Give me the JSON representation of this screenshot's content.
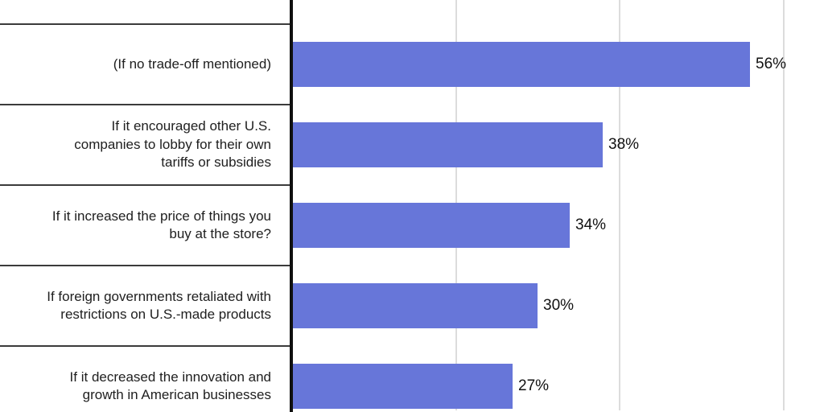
{
  "chart_data": {
    "type": "bar",
    "orientation": "horizontal",
    "categories": [
      "(If no trade-off mentioned)",
      "If it encouraged other U.S.\ncompanies to lobby for their own\ntariffs or subsidies",
      "If it increased the price of things you\nbuy at the store?",
      "If foreign governments retaliated with\nrestrictions on U.S.-made products",
      "If it decreased the innovation and\ngrowth in American businesses"
    ],
    "values": [
      56,
      38,
      34,
      30,
      27
    ],
    "value_labels": [
      "56%",
      "38%",
      "34%",
      "30%",
      "27%"
    ],
    "xlim": [
      0,
      65
    ],
    "gridline_values": [
      20,
      40,
      60
    ],
    "grid": "vertical-only",
    "legend": "none",
    "colors": {
      "bar": "#6776d9",
      "axis": "#101010",
      "divider": "#3b3b3b",
      "gridline": "#dcdcdc",
      "category_text": "#202020",
      "value_text": "#111111"
    }
  }
}
